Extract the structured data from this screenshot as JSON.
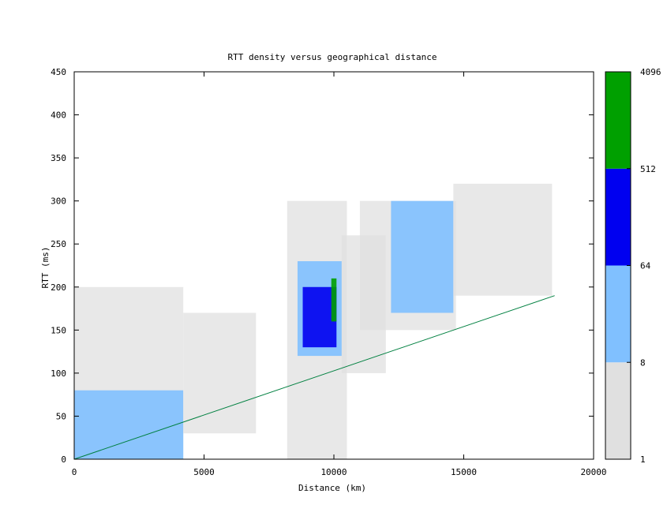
{
  "chart_data": {
    "type": "heatmap",
    "title": "RTT density versus geographical distance",
    "xlabel": "Distance (km)",
    "ylabel": "RTT (ms)",
    "xlim": [
      0,
      20000
    ],
    "ylim": [
      0,
      450
    ],
    "x_ticks": [
      "0",
      "5000",
      "10000",
      "15000",
      "20000"
    ],
    "y_ticks": [
      "0",
      "50",
      "100",
      "150",
      "200",
      "250",
      "300",
      "350",
      "400",
      "450"
    ],
    "colorbar": {
      "scale": "log2",
      "tick_labels": [
        "1",
        "8",
        "64",
        "512",
        "4096"
      ],
      "bands": [
        {
          "from": 1,
          "to": 8,
          "color": "#e0e0e0"
        },
        {
          "from": 8,
          "to": 64,
          "color": "#80c0ff"
        },
        {
          "from": 64,
          "to": 512,
          "color": "#0000f0"
        },
        {
          "from": 512,
          "to": 4096,
          "color": "#00a000"
        }
      ]
    },
    "reference_line": {
      "color": "#008040",
      "points": [
        [
          0,
          0
        ],
        [
          18500,
          190
        ]
      ]
    },
    "density_regions": [
      {
        "x": [
          0,
          4200
        ],
        "y": [
          0,
          200
        ],
        "level": 1
      },
      {
        "x": [
          0,
          4200
        ],
        "y": [
          0,
          80
        ],
        "level": 2
      },
      {
        "x": [
          4200,
          7000
        ],
        "y": [
          30,
          170
        ],
        "level": 1
      },
      {
        "x": [
          8200,
          10500
        ],
        "y": [
          0,
          300
        ],
        "level": 1
      },
      {
        "x": [
          8600,
          10300
        ],
        "y": [
          120,
          230
        ],
        "level": 2
      },
      {
        "x": [
          8800,
          10100
        ],
        "y": [
          130,
          200
        ],
        "level": 3
      },
      {
        "x": [
          9900,
          10100
        ],
        "y": [
          160,
          210
        ],
        "level": 4
      },
      {
        "x": [
          10300,
          12000
        ],
        "y": [
          100,
          260
        ],
        "level": 1
      },
      {
        "x": [
          11000,
          14700
        ],
        "y": [
          150,
          300
        ],
        "level": 1
      },
      {
        "x": [
          12200,
          14600
        ],
        "y": [
          170,
          300
        ],
        "level": 2
      },
      {
        "x": [
          14600,
          18400
        ],
        "y": [
          190,
          320
        ],
        "level": 1
      }
    ]
  }
}
